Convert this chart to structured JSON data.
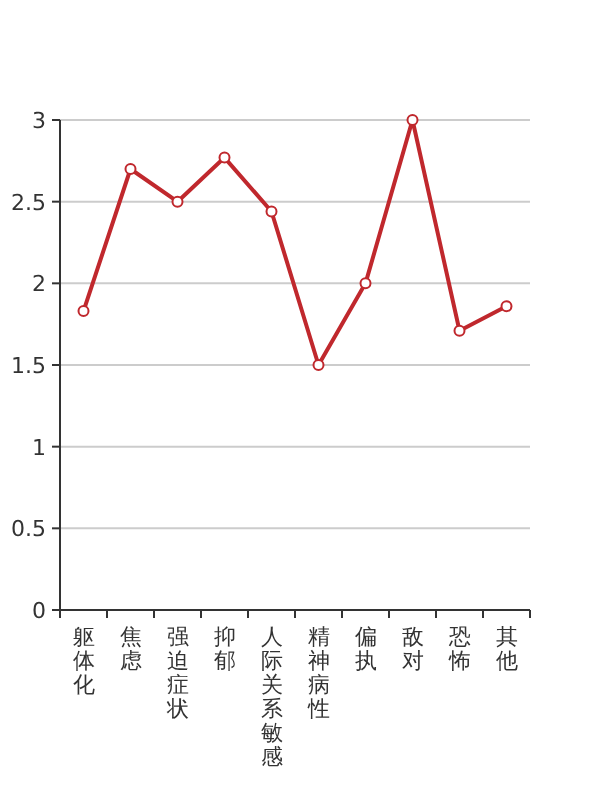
{
  "chart_data": {
    "type": "line",
    "categories": [
      "躯体化",
      "焦虑",
      "强迫症状",
      "抑郁",
      "人际关系敏感",
      "精神病性",
      "偏执",
      "敌对",
      "恐怖",
      "其他"
    ],
    "series": [
      {
        "color": "#c0282d",
        "values": [
          1.83,
          2.7,
          2.5,
          2.77,
          2.44,
          1.5,
          2.0,
          3.0,
          1.71,
          1.86
        ]
      }
    ],
    "ylim": [
      0,
      3
    ],
    "yticks": [
      0,
      0.5,
      1,
      1.5,
      2,
      2.5,
      3
    ],
    "grid": "y",
    "marker": "circle",
    "line_style": "solid"
  }
}
